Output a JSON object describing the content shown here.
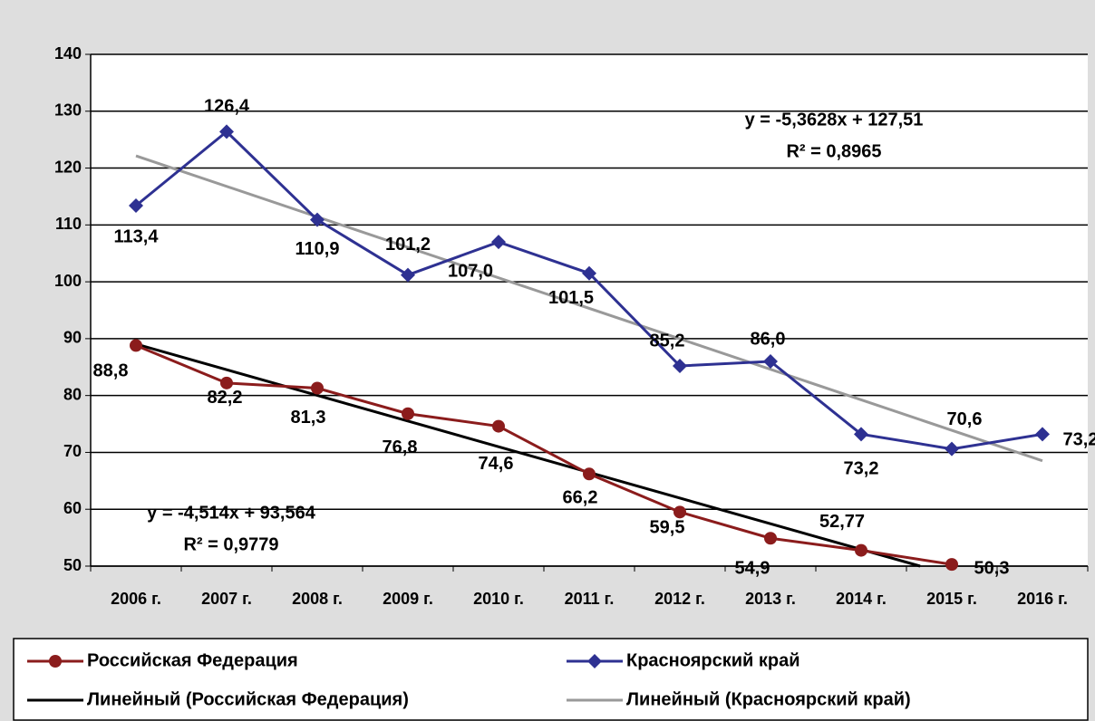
{
  "chart_data": {
    "type": "line",
    "categories": [
      "2006 г.",
      "2007 г.",
      "2008 г.",
      "2009 г.",
      "2010 г.",
      "2011 г.",
      "2012 г.",
      "2013 г.",
      "2014 г.",
      "2015 г.",
      "2016 г."
    ],
    "series": [
      {
        "name": "Российская Федерация",
        "color": "#8b1c1c",
        "marker": "circle",
        "values": [
          88.8,
          82.2,
          81.3,
          76.8,
          74.6,
          66.2,
          59.5,
          54.9,
          52.77,
          50.3,
          null
        ],
        "value_labels": [
          "88,8",
          "82,2",
          "81,3",
          "76,8",
          "74,6",
          "66,2",
          "59,5",
          "54,9",
          "52,77",
          "50,3",
          null
        ]
      },
      {
        "name": "Красноярский край",
        "color": "#2e3192",
        "marker": "diamond",
        "values": [
          113.4,
          126.4,
          110.9,
          101.2,
          107.0,
          101.5,
          85.2,
          86.0,
          73.2,
          70.6,
          73.2
        ],
        "value_labels": [
          "113,4",
          "126,4",
          "110,9",
          "101,2",
          "107,0",
          "101,5",
          "85,2",
          "86,0",
          "73,2",
          "70,6",
          "73,2"
        ]
      }
    ],
    "trendlines": [
      {
        "name": "Линейный (Российская Федерация)",
        "color": "#000000",
        "slope": -4.514,
        "intercept": 93.564,
        "equation": "y = -4,514x + 93,564",
        "r2": "R² = 0,9779"
      },
      {
        "name": "Линейный (Красноярский край)",
        "color": "#999999",
        "slope": -5.3628,
        "intercept": 127.51,
        "equation": "y = -5,3628x + 127,51",
        "r2": "R² = 0,8965"
      }
    ],
    "ylim": [
      50,
      140
    ],
    "yticks": [
      50,
      60,
      70,
      80,
      90,
      100,
      110,
      120,
      130,
      140
    ],
    "grid": true,
    "legend": "bottom"
  }
}
